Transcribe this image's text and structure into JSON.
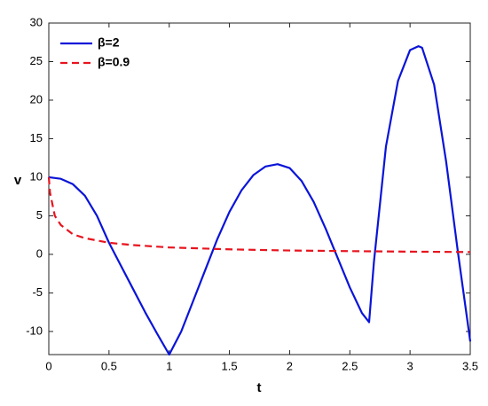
{
  "chart_data": {
    "type": "line",
    "xlabel": "t",
    "ylabel": "v",
    "xlim": [
      0,
      3.5
    ],
    "xticks": [
      0,
      0.5,
      1,
      1.5,
      2,
      2.5,
      3,
      3.5
    ],
    "ylim": [
      -13,
      30
    ],
    "yticks": [
      -10,
      -5,
      0,
      5,
      10,
      15,
      20,
      25,
      30
    ],
    "grid": false,
    "legend": "upper-left",
    "series": [
      {
        "name": "β=2",
        "color": "#0a14d8",
        "linestyle": "solid",
        "x": [
          0,
          0.1,
          0.2,
          0.3,
          0.4,
          0.5,
          0.6,
          0.7,
          0.8,
          0.9,
          1.0,
          1.1,
          1.2,
          1.3,
          1.4,
          1.5,
          1.6,
          1.7,
          1.8,
          1.9,
          2.0,
          2.1,
          2.2,
          2.3,
          2.4,
          2.5,
          2.6,
          2.66,
          2.7,
          2.8,
          2.9,
          3.0,
          3.07,
          3.1,
          3.2,
          3.3,
          3.4,
          3.5
        ],
        "values": [
          10,
          9.8,
          9.1,
          7.6,
          5.0,
          1.5,
          -1.5,
          -4.5,
          -7.5,
          -10.3,
          -13,
          -10,
          -6,
          -2,
          2,
          5.5,
          8.3,
          10.3,
          11.4,
          11.7,
          11.2,
          9.5,
          6.8,
          3.3,
          -0.5,
          -4.3,
          -7.6,
          -8.8,
          -1,
          14,
          22.5,
          26.5,
          27,
          26.8,
          22,
          12,
          0,
          -11.3
        ]
      },
      {
        "name": "β=0.9",
        "color": "#e8141e",
        "linestyle": "dashed",
        "x": [
          0,
          0.01,
          0.05,
          0.1,
          0.2,
          0.3,
          0.5,
          0.7,
          1.0,
          1.5,
          2.0,
          2.5,
          3.0,
          3.5
        ],
        "values": [
          10,
          8,
          5,
          3.8,
          2.6,
          2.1,
          1.5,
          1.2,
          0.9,
          0.65,
          0.5,
          0.42,
          0.35,
          0.3
        ]
      }
    ]
  }
}
